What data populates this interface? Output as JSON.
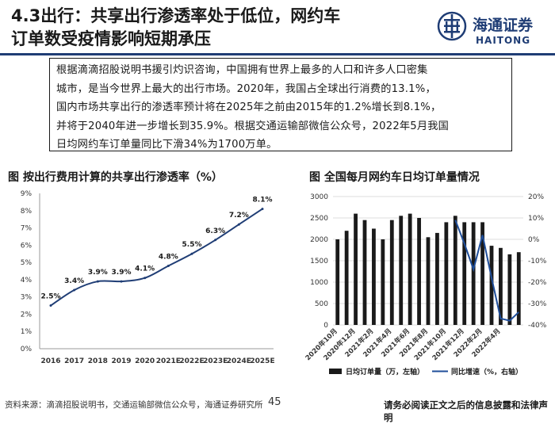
{
  "header": {
    "title_line1": "4.3出行：共享出行渗透率处于低位，网约车",
    "title_line2": "订单数受疫情影响短期承压",
    "brand_cn": "海通证券",
    "brand_en": "HAITONG",
    "accent_color": "#1f3d75"
  },
  "summary": {
    "lines": [
      "根据滴滴招股说明书援引灼识咨询，中国拥有世界上最多的人口和许多人口密集",
      "城市，是当今世界上最大的出行市场。2020年，我国占全球出行消费的13.1%，",
      "国内市场共享出行的渗透率预计将在2025年之前由2015年的1.2%增长到8.1%，",
      "并将于2040年进一步增长到35.9%。根据交通运输部微信公众号，2022年5月我国",
      "日均网约车订单量同比下滑34%为1700万单。"
    ]
  },
  "chart_data": [
    {
      "type": "line",
      "title": "图 按出行费用计算的共享出行渗透率（%）",
      "categories": [
        "2016",
        "2017",
        "2018",
        "2019",
        "2020",
        "2021E",
        "2022E",
        "2023E",
        "2024E",
        "2025E"
      ],
      "values": [
        2.5,
        3.4,
        3.9,
        3.9,
        4.1,
        4.8,
        5.5,
        6.3,
        7.2,
        8.1
      ],
      "data_labels": [
        "2.5%",
        "3.4%",
        "3.9%",
        "3.9%",
        "4.1%",
        "4.8%",
        "5.5%",
        "6.3%",
        "7.2%",
        "8.1%"
      ],
      "ylim": [
        0,
        9
      ],
      "yticks": [
        "0%",
        "1%",
        "2%",
        "3%",
        "4%",
        "5%",
        "6%",
        "7%",
        "8%",
        "9%"
      ],
      "grid": false,
      "line_color": "#1f3d75"
    },
    {
      "type": "bar",
      "title": "图 全国每月网约车日均订单量情况",
      "x_labels": [
        "2020年10月",
        "2020年12月",
        "2021年2月",
        "2021年4月",
        "2021年6月",
        "2021年8月",
        "2021年10月",
        "2021年12月",
        "2022年2月",
        "2022年4月"
      ],
      "series": [
        {
          "name": "日均订单量（万，左轴）",
          "type": "bar",
          "color": "#1a1a1a",
          "values": [
            2000,
            2200,
            2600,
            2450,
            2250,
            2000,
            2450,
            2550,
            2600,
            2500,
            2050,
            2150,
            2400,
            2550,
            2400,
            2400,
            2400,
            1850,
            1800,
            1650,
            1700
          ]
        },
        {
          "name": "同比增速（%，右轴）",
          "type": "line",
          "color": "#1f4e9a",
          "values": [
            null,
            null,
            null,
            null,
            null,
            null,
            null,
            null,
            null,
            null,
            null,
            null,
            null,
            9,
            -2,
            -14,
            2,
            -18,
            -37,
            -38,
            -34
          ]
        }
      ],
      "ylim_left": [
        0,
        3000
      ],
      "yticks_left": [
        "0",
        "500",
        "1000",
        "1500",
        "2000",
        "2500",
        "3000"
      ],
      "ylim_right": [
        -40,
        20
      ],
      "yticks_right": [
        "-40%",
        "-30%",
        "-20%",
        "-10%",
        "0%",
        "10%",
        "20%"
      ],
      "grid": true,
      "legend_position": "bottom"
    }
  ],
  "footer": {
    "source": "资料来源：滴滴招股说明书，交通运输部微信公众号，海通证券研究所",
    "page_number": "45",
    "disclaimer": "请务必阅读正文之后的信息披露和法律声明"
  }
}
